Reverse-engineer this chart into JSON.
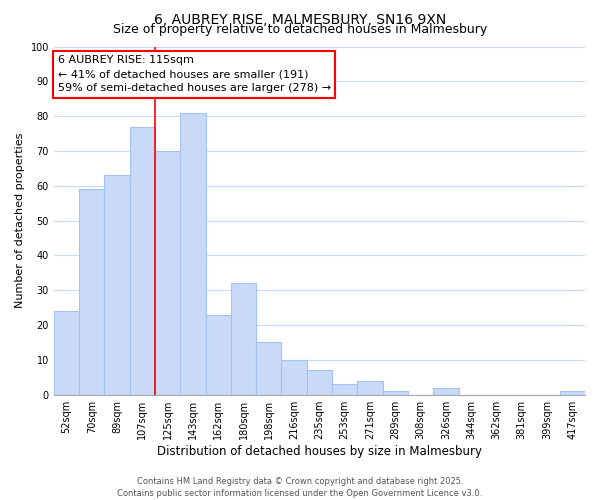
{
  "title": "6, AUBREY RISE, MALMESBURY, SN16 9XN",
  "subtitle": "Size of property relative to detached houses in Malmesbury",
  "xlabel": "Distribution of detached houses by size in Malmesbury",
  "ylabel": "Number of detached properties",
  "bar_labels": [
    "52sqm",
    "70sqm",
    "89sqm",
    "107sqm",
    "125sqm",
    "143sqm",
    "162sqm",
    "180sqm",
    "198sqm",
    "216sqm",
    "235sqm",
    "253sqm",
    "271sqm",
    "289sqm",
    "308sqm",
    "326sqm",
    "344sqm",
    "362sqm",
    "381sqm",
    "399sqm",
    "417sqm"
  ],
  "bar_values": [
    24,
    59,
    63,
    77,
    70,
    81,
    23,
    32,
    15,
    10,
    7,
    3,
    4,
    1,
    0,
    2,
    0,
    0,
    0,
    0,
    1
  ],
  "bar_color": "#c9daf8",
  "bar_edge_color": "#a4c2f4",
  "grid_color": "#c9daf8",
  "annotation_line1": "6 AUBREY RISE: 115sqm",
  "annotation_line2": "← 41% of detached houses are smaller (191)",
  "annotation_line3": "59% of semi-detached houses are larger (278) →",
  "redline_bar_index": 4,
  "ylim": [
    0,
    100
  ],
  "yticks": [
    0,
    10,
    20,
    30,
    40,
    50,
    60,
    70,
    80,
    90,
    100
  ],
  "footer_line1": "Contains HM Land Registry data © Crown copyright and database right 2025.",
  "footer_line2": "Contains public sector information licensed under the Open Government Licence v3.0.",
  "title_fontsize": 10,
  "subtitle_fontsize": 9,
  "xlabel_fontsize": 8.5,
  "ylabel_fontsize": 8,
  "tick_fontsize": 7,
  "annotation_fontsize": 8,
  "footer_fontsize": 6
}
